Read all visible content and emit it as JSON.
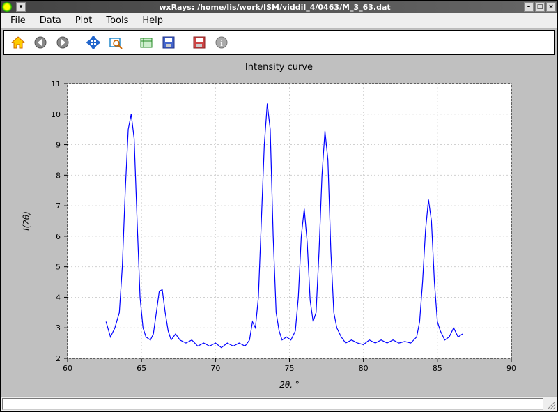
{
  "window": {
    "title": "wxRays: /home/lis/work/ISM/viddil_4/0463/M_3_63.dat"
  },
  "menubar": {
    "items": [
      {
        "label": "File",
        "accel": "F"
      },
      {
        "label": "Data",
        "accel": "D"
      },
      {
        "label": "Plot",
        "accel": "P"
      },
      {
        "label": "Tools",
        "accel": "T"
      },
      {
        "label": "Help",
        "accel": "H"
      }
    ]
  },
  "toolbar": {
    "icons": [
      {
        "name": "home-icon"
      },
      {
        "name": "back-icon"
      },
      {
        "name": "forward-icon"
      },
      {
        "sep": true
      },
      {
        "name": "pan-icon"
      },
      {
        "name": "zoom-icon"
      },
      {
        "sep": true
      },
      {
        "name": "config-icon"
      },
      {
        "name": "save-icon"
      },
      {
        "sep": true
      },
      {
        "name": "save2-icon"
      },
      {
        "name": "info-icon"
      }
    ]
  },
  "chart": {
    "type": "line",
    "title": "Intensity curve",
    "xlabel": "2θ,  °",
    "ylabel": "I(2θ)",
    "xlim": [
      60,
      90
    ],
    "ylim": [
      2,
      11
    ],
    "xtick_step": 5,
    "ytick_step": 1,
    "xticks": [
      "60",
      "65",
      "70",
      "75",
      "80",
      "85",
      "90"
    ],
    "yticks": [
      "2",
      "3",
      "4",
      "5",
      "6",
      "7",
      "8",
      "9",
      "10",
      "11"
    ],
    "line_color": "#0000ff",
    "line_width": 1.2,
    "background_color": "#ffffff",
    "grid_color": "#d0d0d0",
    "axis_color": "#000000",
    "title_fontsize": 13,
    "label_fontsize": 12,
    "tick_fontsize": 11,
    "data": [
      [
        62.6,
        3.2
      ],
      [
        62.9,
        2.7
      ],
      [
        63.2,
        3.0
      ],
      [
        63.5,
        3.5
      ],
      [
        63.7,
        5.0
      ],
      [
        63.9,
        7.5
      ],
      [
        64.1,
        9.5
      ],
      [
        64.3,
        10.0
      ],
      [
        64.5,
        9.2
      ],
      [
        64.7,
        6.5
      ],
      [
        64.9,
        4.0
      ],
      [
        65.1,
        3.0
      ],
      [
        65.3,
        2.7
      ],
      [
        65.6,
        2.6
      ],
      [
        65.8,
        2.8
      ],
      [
        66.0,
        3.5
      ],
      [
        66.2,
        4.2
      ],
      [
        66.4,
        4.25
      ],
      [
        66.6,
        3.5
      ],
      [
        66.8,
        2.9
      ],
      [
        67.0,
        2.6
      ],
      [
        67.3,
        2.8
      ],
      [
        67.6,
        2.6
      ],
      [
        68.0,
        2.5
      ],
      [
        68.4,
        2.6
      ],
      [
        68.8,
        2.4
      ],
      [
        69.2,
        2.5
      ],
      [
        69.6,
        2.4
      ],
      [
        70.0,
        2.5
      ],
      [
        70.4,
        2.35
      ],
      [
        70.8,
        2.5
      ],
      [
        71.2,
        2.4
      ],
      [
        71.6,
        2.5
      ],
      [
        72.0,
        2.4
      ],
      [
        72.3,
        2.6
      ],
      [
        72.5,
        3.2
      ],
      [
        72.7,
        3.0
      ],
      [
        72.9,
        4.0
      ],
      [
        73.1,
        6.5
      ],
      [
        73.3,
        9.0
      ],
      [
        73.5,
        10.35
      ],
      [
        73.7,
        9.5
      ],
      [
        73.9,
        6.0
      ],
      [
        74.1,
        3.5
      ],
      [
        74.3,
        2.9
      ],
      [
        74.5,
        2.6
      ],
      [
        74.8,
        2.7
      ],
      [
        75.1,
        2.6
      ],
      [
        75.4,
        2.9
      ],
      [
        75.6,
        4.0
      ],
      [
        75.8,
        6.0
      ],
      [
        76.0,
        6.9
      ],
      [
        76.2,
        5.8
      ],
      [
        76.4,
        3.9
      ],
      [
        76.6,
        3.2
      ],
      [
        76.8,
        3.5
      ],
      [
        77.0,
        5.5
      ],
      [
        77.2,
        8.0
      ],
      [
        77.4,
        9.45
      ],
      [
        77.6,
        8.5
      ],
      [
        77.8,
        5.5
      ],
      [
        78.0,
        3.5
      ],
      [
        78.2,
        3.0
      ],
      [
        78.5,
        2.7
      ],
      [
        78.8,
        2.5
      ],
      [
        79.2,
        2.6
      ],
      [
        79.6,
        2.5
      ],
      [
        80.0,
        2.45
      ],
      [
        80.4,
        2.6
      ],
      [
        80.8,
        2.5
      ],
      [
        81.2,
        2.6
      ],
      [
        81.6,
        2.5
      ],
      [
        82.0,
        2.6
      ],
      [
        82.4,
        2.5
      ],
      [
        82.8,
        2.55
      ],
      [
        83.2,
        2.5
      ],
      [
        83.6,
        2.7
      ],
      [
        83.8,
        3.2
      ],
      [
        84.0,
        4.5
      ],
      [
        84.2,
        6.2
      ],
      [
        84.4,
        7.2
      ],
      [
        84.6,
        6.5
      ],
      [
        84.8,
        4.5
      ],
      [
        85.0,
        3.2
      ],
      [
        85.2,
        2.9
      ],
      [
        85.5,
        2.6
      ],
      [
        85.8,
        2.7
      ],
      [
        86.1,
        3.0
      ],
      [
        86.4,
        2.7
      ],
      [
        86.7,
        2.8
      ]
    ]
  }
}
